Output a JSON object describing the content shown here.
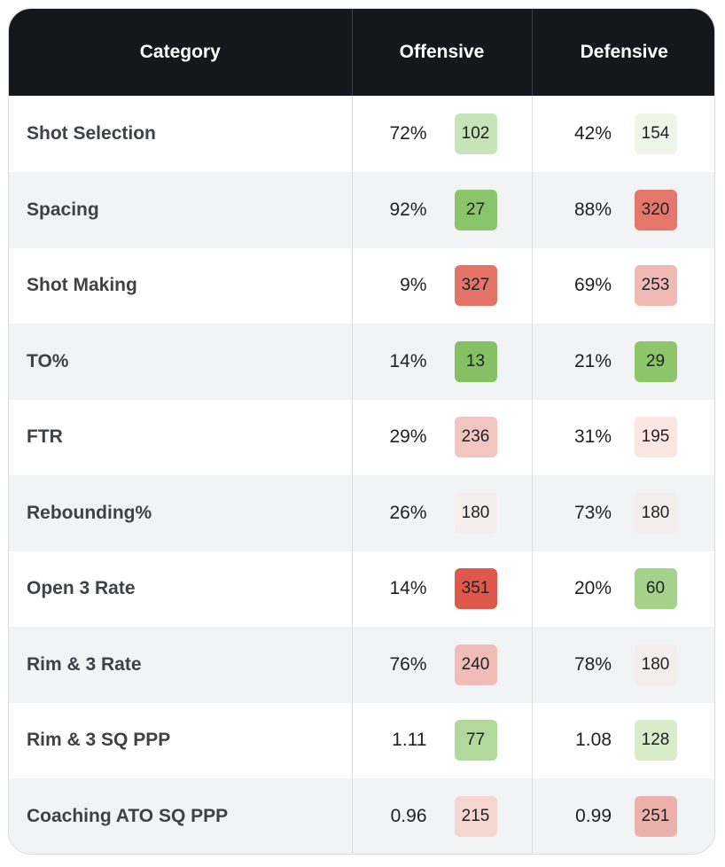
{
  "headers": [
    "Category",
    "Offensive",
    "Defensive"
  ],
  "rows": [
    {
      "category": "Shot Selection",
      "off_pct": "72%",
      "off_rank": "102",
      "off_color": "#c7e4b8",
      "def_pct": "42%",
      "def_rank": "154",
      "def_color": "#edf5e7"
    },
    {
      "category": "Spacing",
      "off_pct": "92%",
      "off_rank": "27",
      "off_color": "#8bc56b",
      "def_pct": "88%",
      "def_rank": "320",
      "def_color": "#e5766b"
    },
    {
      "category": "Shot Making",
      "off_pct": "9%",
      "off_rank": "327",
      "off_color": "#e47368",
      "def_pct": "69%",
      "def_rank": "253",
      "def_color": "#f1b9b3"
    },
    {
      "category": "TO%",
      "off_pct": "14%",
      "off_rank": "13",
      "off_color": "#85c063",
      "def_pct": "21%",
      "def_rank": "29",
      "def_color": "#8cc56a"
    },
    {
      "category": "FTR",
      "off_pct": "29%",
      "off_rank": "236",
      "off_color": "#f3c5c0",
      "def_pct": "31%",
      "def_rank": "195",
      "def_color": "#fbe6e4"
    },
    {
      "category": "Rebounding%",
      "off_pct": "26%",
      "off_rank": "180",
      "off_color": "#f3eeec",
      "def_pct": "73%",
      "def_rank": "180",
      "def_color": "#f3eeec"
    },
    {
      "category": "Open 3 Rate",
      "off_pct": "14%",
      "off_rank": "351",
      "off_color": "#de584c",
      "def_pct": "20%",
      "def_rank": "60",
      "def_color": "#a5d28b"
    },
    {
      "category": "Rim & 3 Rate",
      "off_pct": "76%",
      "off_rank": "240",
      "off_color": "#f0bcb7",
      "def_pct": "78%",
      "def_rank": "180",
      "def_color": "#f3eeec"
    },
    {
      "category": "Rim & 3 SQ PPP",
      "off_pct": "1.11",
      "off_rank": "77",
      "off_color": "#b2d99c",
      "def_pct": "1.08",
      "def_rank": "128",
      "def_color": "#d8ecca"
    },
    {
      "category": "Coaching ATO SQ PPP",
      "off_pct": "0.96",
      "off_rank": "215",
      "off_color": "#f7d6d2",
      "def_pct": "0.99",
      "def_rank": "251",
      "def_color": "#edb1ab"
    }
  ]
}
